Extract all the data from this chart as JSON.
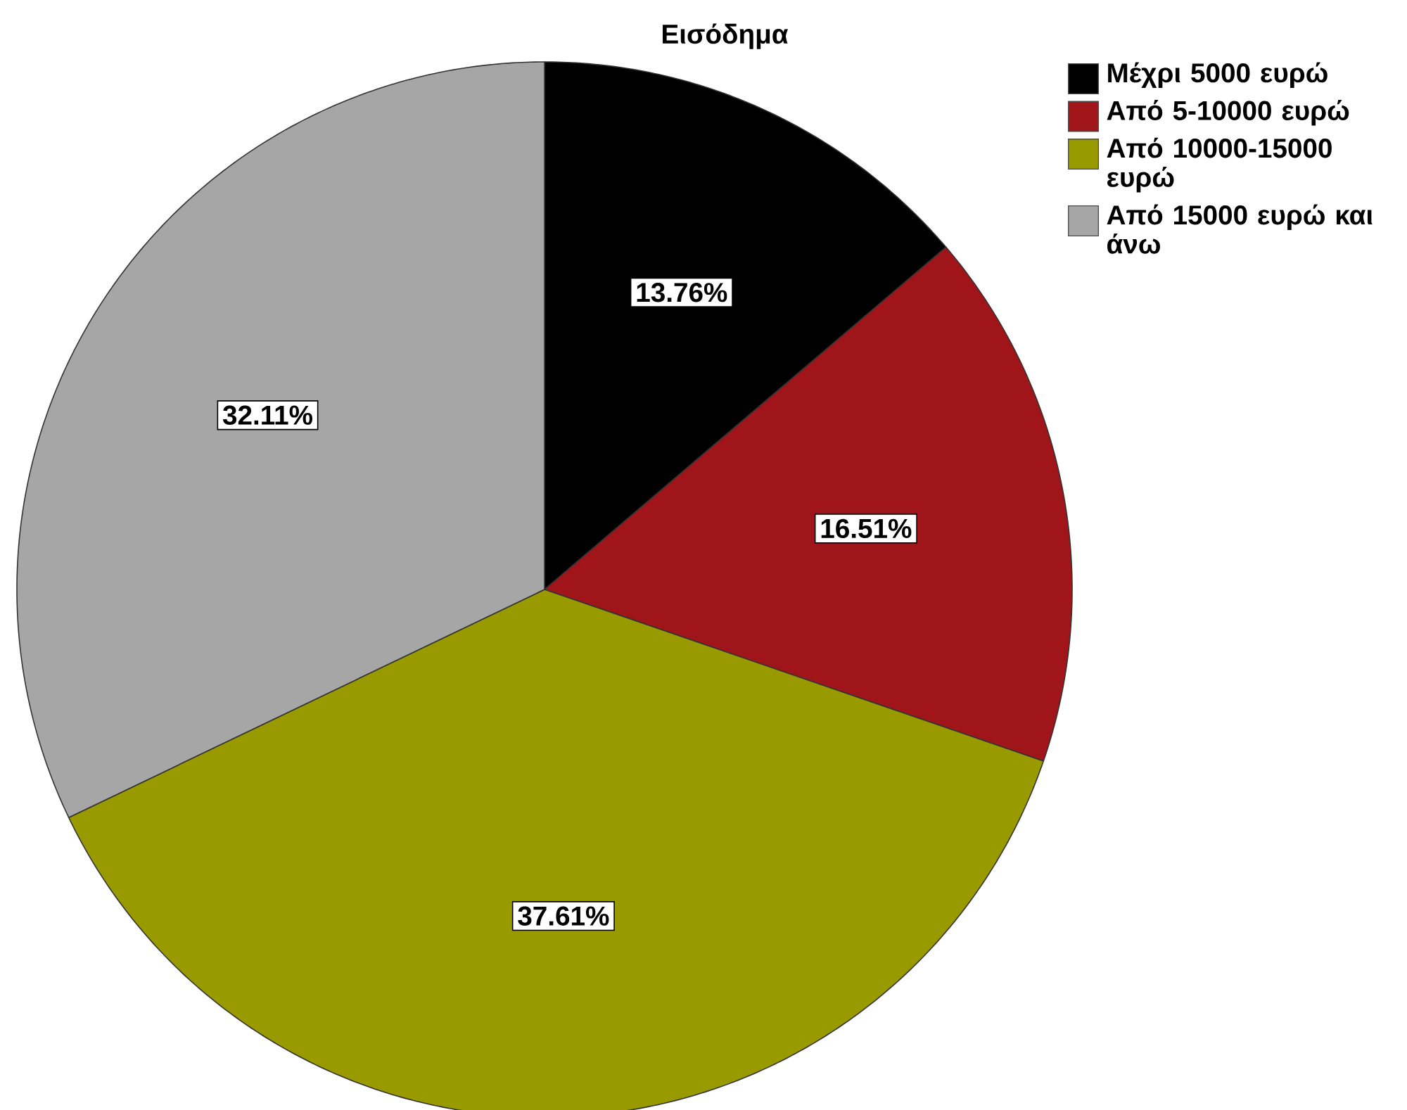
{
  "chart_data": {
    "type": "pie",
    "title": "Εισόδημα",
    "categories": [
      "Μέχρι 5000 ευρώ",
      "Από 5-10000 ευρώ",
      "Από 10000-15000 ευρώ",
      "Από 15000 ευρώ και άνω"
    ],
    "values": [
      13.76,
      16.51,
      37.61,
      32.11
    ],
    "value_labels": [
      "13.76%",
      "16.51%",
      "37.61%",
      "32.11%"
    ],
    "colors": [
      "#000000",
      "#a0151a",
      "#999900",
      "#a6a6a6"
    ],
    "legend": "top right"
  }
}
